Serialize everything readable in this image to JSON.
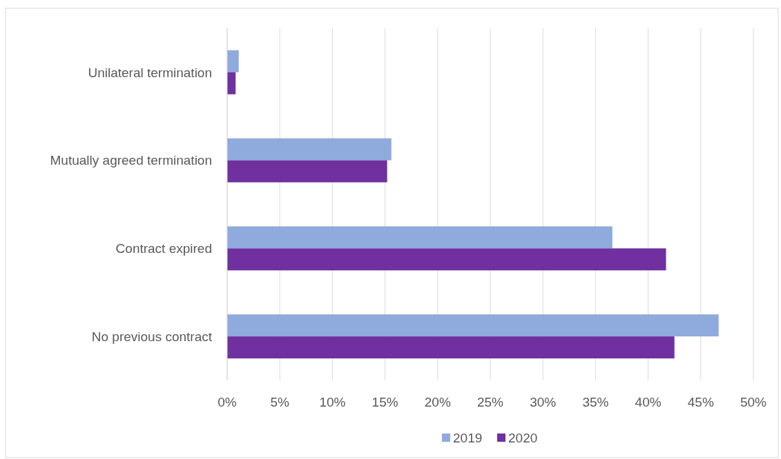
{
  "chart_data": {
    "type": "bar",
    "orientation": "horizontal",
    "categories": [
      "Unilateral termination",
      "Mutually agreed termination",
      "Contract expired",
      "No previous contract"
    ],
    "series": [
      {
        "name": "2019",
        "color": "#8faadc",
        "values": [
          1.1,
          15.6,
          36.6,
          46.7
        ]
      },
      {
        "name": "2020",
        "color": "#7030a0",
        "values": [
          0.8,
          15.2,
          41.7,
          42.5
        ]
      }
    ],
    "xlim": [
      0,
      50
    ],
    "xticks": [
      {
        "value": 0,
        "label": "0%"
      },
      {
        "value": 5,
        "label": "5%"
      },
      {
        "value": 10,
        "label": "10%"
      },
      {
        "value": 15,
        "label": "15%"
      },
      {
        "value": 20,
        "label": "20%"
      },
      {
        "value": 25,
        "label": "25%"
      },
      {
        "value": 30,
        "label": "30%"
      },
      {
        "value": 35,
        "label": "35%"
      },
      {
        "value": 40,
        "label": "40%"
      },
      {
        "value": 45,
        "label": "45%"
      },
      {
        "value": 50,
        "label": "50%"
      }
    ],
    "grid": "x",
    "legend": "bottom"
  }
}
